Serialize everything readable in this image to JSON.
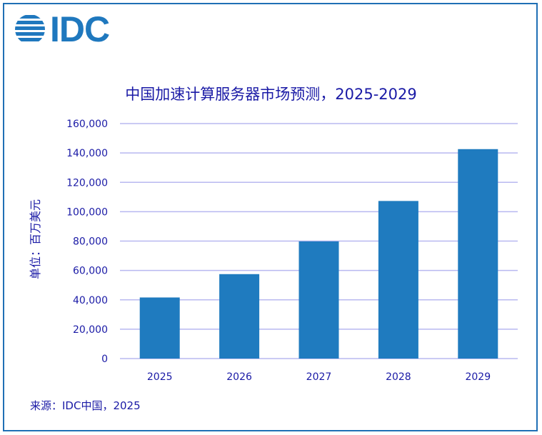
{
  "logo": {
    "text": "IDC"
  },
  "colors": {
    "bar": "#1f7bbf",
    "grid": "#b8b8f0",
    "text": "#1a1aa6",
    "border": "#1f6fb5"
  },
  "chart_data": {
    "type": "bar",
    "title": "中国加速计算服务器市场预测，2025-2029",
    "ylabel": "单位：百万美元",
    "xlabel": "",
    "categories": [
      "2025",
      "2026",
      "2027",
      "2028",
      "2029"
    ],
    "values": [
      41600,
      57500,
      79800,
      107300,
      142600
    ],
    "ylim": [
      0,
      160000
    ],
    "yticks": [
      0,
      20000,
      40000,
      60000,
      80000,
      100000,
      120000,
      140000,
      160000
    ],
    "ytick_labels": [
      "0",
      "20,000",
      "40,000",
      "60,000",
      "80,000",
      "100,000",
      "120,000",
      "140,000",
      "160,000"
    ],
    "grid": true,
    "legend": "none"
  },
  "source": "来源：IDC中国，2025"
}
